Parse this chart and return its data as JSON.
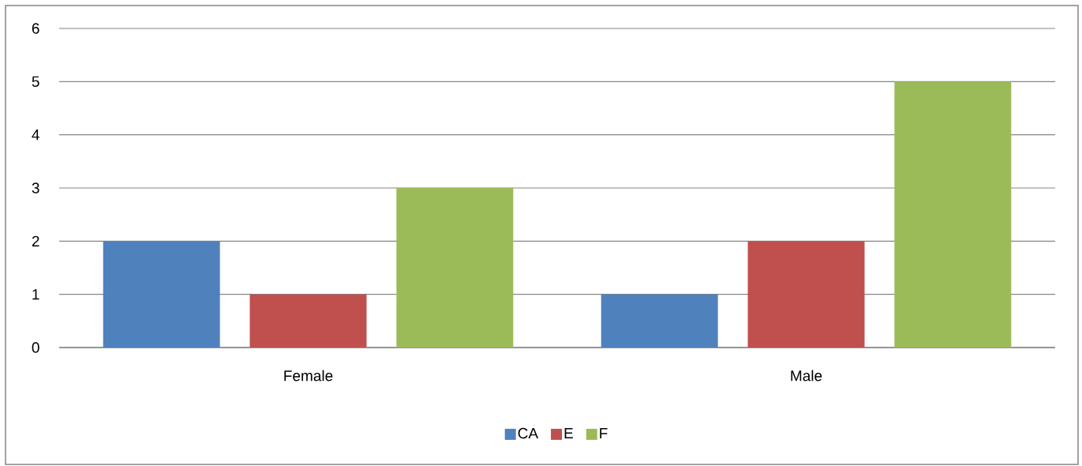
{
  "chart_data": {
    "type": "bar",
    "categories": [
      "Female",
      "Male"
    ],
    "series": [
      {
        "name": "CA",
        "color": "#4f81bd",
        "values": [
          2,
          1
        ]
      },
      {
        "name": "E",
        "color": "#c0504d",
        "values": [
          1,
          2
        ]
      },
      {
        "name": "F",
        "color": "#9bbb59",
        "values": [
          3,
          5
        ]
      }
    ],
    "ylim": [
      0,
      6
    ],
    "yticks": [
      0,
      1,
      2,
      3,
      4,
      5,
      6
    ],
    "grid": "y",
    "legend": "bottom"
  }
}
